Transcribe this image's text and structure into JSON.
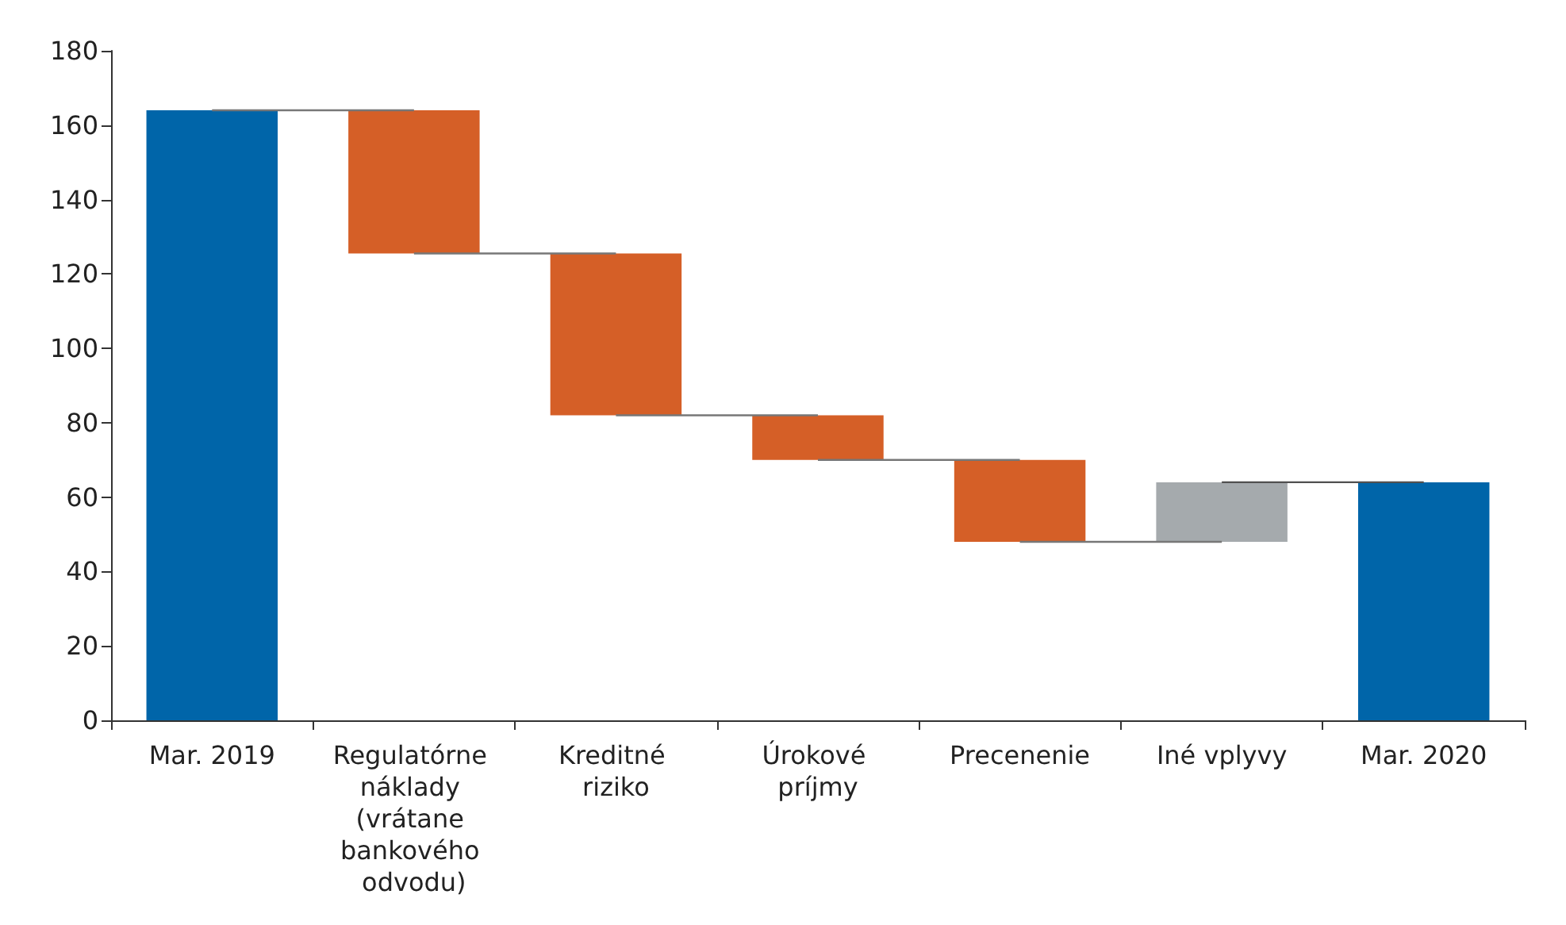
{
  "chart_data": {
    "type": "bar",
    "categories": [
      "Mar. 2019",
      "Regulatórne náklady (vrátane bankového odvodu)",
      "Kreditné riziko",
      "Úrokové príjmy",
      "Precenenie",
      "Iné vplyvy",
      "Mar. 2020"
    ],
    "values": [
      164,
      -38.5,
      -43.5,
      -12,
      -22,
      16,
      64
    ],
    "base": [
      0,
      164,
      125.5,
      82,
      70,
      48,
      0
    ],
    "colors": [
      "#0065a9",
      "#d55f27",
      "#d55f27",
      "#d55f27",
      "#d55f27",
      "#a5aaad",
      "#0065a9"
    ],
    "series": [
      {
        "type": "line",
        "color": "#777777",
        "x": [
          "Mar. 2019",
          "Regulatórne náklady (vrátane bankového odvodu)"
        ],
        "values": [
          164,
          164
        ]
      },
      {
        "type": "line",
        "color": "#777777",
        "x": [
          "Regulatórne náklady (vrátane bankového odvodu)",
          "Kreditné riziko"
        ],
        "values": [
          125.5,
          125.5
        ]
      },
      {
        "type": "line",
        "color": "#777777",
        "x": [
          "Kreditné riziko",
          "Úrokové príjmy"
        ],
        "values": [
          82,
          82
        ]
      },
      {
        "type": "line",
        "color": "#777777",
        "x": [
          "Úrokové príjmy",
          "Precenenie"
        ],
        "values": [
          70,
          70
        ]
      },
      {
        "type": "line",
        "color": "#777777",
        "x": [
          "Precenenie",
          "Iné vplyvy"
        ],
        "values": [
          48,
          48
        ]
      },
      {
        "type": "line",
        "color": "#505050",
        "x": [
          "Iné vplyvy",
          "Mar. 2020"
        ],
        "values": [
          64,
          64
        ]
      }
    ],
    "ylim": [
      0,
      180
    ],
    "yticks": [
      0,
      20,
      40,
      60,
      80,
      100,
      120,
      140,
      160,
      180
    ],
    "grid": false
  }
}
